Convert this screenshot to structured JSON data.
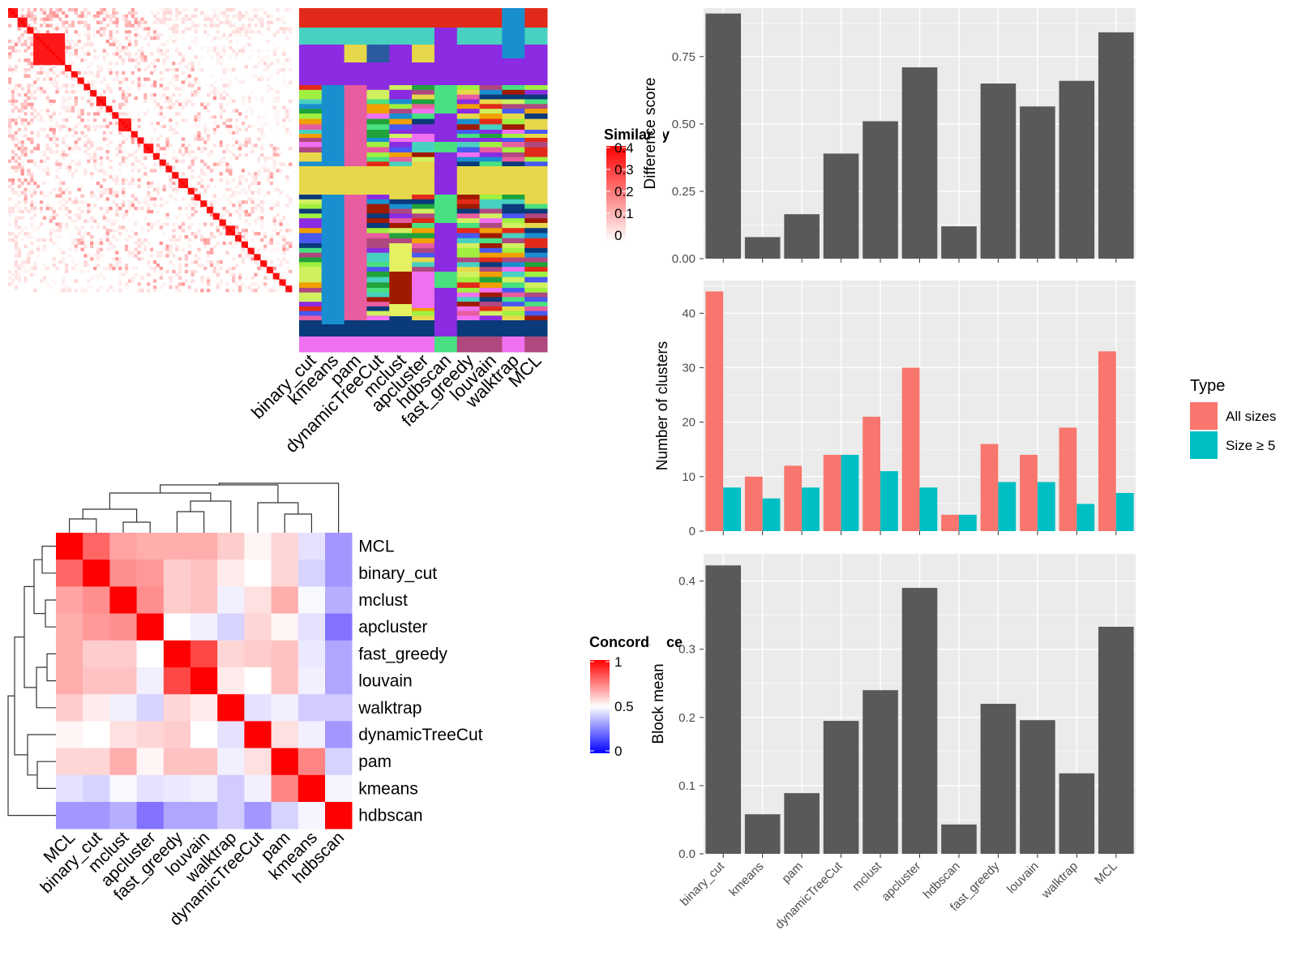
{
  "methods": [
    "binary_cut",
    "kmeans",
    "pam",
    "dynamicTreeCut",
    "mclust",
    "apcluster",
    "hdbscan",
    "fast_greedy",
    "louvain",
    "walktrap",
    "MCL"
  ],
  "colors": {
    "bar": "#595959",
    "panel_bg": "#ebebeb",
    "grid": "#ffffff",
    "all_sizes": "#F8766D",
    "size_ge5": "#00BFC4",
    "heat_high": "#ff0000",
    "heat_mid": "#ffffff",
    "heat_low": "#0000ff",
    "concord_low": "#8060ff"
  },
  "similarity_legend": {
    "title": "Similarity",
    "labels": [
      "0.4",
      "0.3",
      "0.2",
      "0.1",
      "0"
    ]
  },
  "concordance_legend": {
    "title": "Concordance",
    "labels": [
      "1",
      "0.5",
      "0"
    ]
  },
  "type_legend": {
    "title": "Type",
    "items": [
      "All sizes",
      "Size ≥ 5"
    ]
  },
  "concordance": {
    "order": [
      "MCL",
      "binary_cut",
      "mclust",
      "apcluster",
      "fast_greedy",
      "louvain",
      "walktrap",
      "dynamicTreeCut",
      "pam",
      "kmeans",
      "hdbscan"
    ],
    "matrix": [
      [
        1.0,
        0.8,
        0.68,
        0.66,
        0.66,
        0.66,
        0.6,
        0.52,
        0.58,
        0.42,
        0.22
      ],
      [
        0.8,
        1.0,
        0.72,
        0.7,
        0.6,
        0.62,
        0.54,
        0.5,
        0.58,
        0.38,
        0.22
      ],
      [
        0.68,
        0.72,
        1.0,
        0.72,
        0.6,
        0.62,
        0.46,
        0.56,
        0.66,
        0.48,
        0.28
      ],
      [
        0.66,
        0.7,
        0.72,
        1.0,
        0.5,
        0.46,
        0.38,
        0.58,
        0.52,
        0.42,
        0.12
      ],
      [
        0.66,
        0.6,
        0.6,
        0.5,
        1.0,
        0.86,
        0.58,
        0.6,
        0.62,
        0.44,
        0.26
      ],
      [
        0.66,
        0.62,
        0.62,
        0.46,
        0.86,
        1.0,
        0.54,
        0.5,
        0.62,
        0.46,
        0.26
      ],
      [
        0.6,
        0.54,
        0.46,
        0.38,
        0.58,
        0.54,
        1.0,
        0.42,
        0.46,
        0.36,
        0.36
      ],
      [
        0.52,
        0.5,
        0.56,
        0.58,
        0.6,
        0.5,
        0.42,
        1.0,
        0.56,
        0.46,
        0.22
      ],
      [
        0.58,
        0.58,
        0.66,
        0.52,
        0.62,
        0.62,
        0.46,
        0.56,
        1.0,
        0.74,
        0.38
      ],
      [
        0.42,
        0.38,
        0.48,
        0.42,
        0.44,
        0.46,
        0.36,
        0.46,
        0.74,
        1.0,
        0.47
      ],
      [
        0.22,
        0.22,
        0.28,
        0.12,
        0.26,
        0.26,
        0.36,
        0.22,
        0.38,
        0.47,
        1.0
      ]
    ]
  },
  "chart_data": [
    {
      "type": "bar",
      "ylabel": "Difference score",
      "categories": [
        "binary_cut",
        "kmeans",
        "pam",
        "dynamicTreeCut",
        "mclust",
        "apcluster",
        "hdbscan",
        "fast_greedy",
        "louvain",
        "walktrap",
        "MCL"
      ],
      "values": [
        0.91,
        0.08,
        0.165,
        0.39,
        0.51,
        0.71,
        0.12,
        0.65,
        0.565,
        0.66,
        0.84
      ],
      "ylim": [
        0,
        0.93
      ],
      "yticks": [
        0,
        0.25,
        0.5,
        0.75
      ],
      "ytick_labels": [
        "0.00",
        "0.25",
        "0.50",
        "0.75"
      ]
    },
    {
      "type": "bar",
      "ylabel": "Number of clusters",
      "categories": [
        "binary_cut",
        "kmeans",
        "pam",
        "dynamicTreeCut",
        "mclust",
        "apcluster",
        "hdbscan",
        "fast_greedy",
        "louvain",
        "walktrap",
        "MCL"
      ],
      "series": [
        {
          "name": "All sizes",
          "values": [
            44,
            10,
            12,
            14,
            21,
            30,
            3,
            16,
            14,
            19,
            33
          ]
        },
        {
          "name": "Size ≥ 5",
          "values": [
            8,
            6,
            8,
            14,
            11,
            8,
            3,
            9,
            9,
            5,
            7
          ]
        }
      ],
      "ylim": [
        0,
        46
      ],
      "yticks": [
        0,
        10,
        20,
        30,
        40
      ],
      "ytick_labels": [
        "0",
        "10",
        "20",
        "30",
        "40"
      ],
      "legend": "right"
    },
    {
      "type": "bar",
      "ylabel": "Block mean",
      "categories": [
        "binary_cut",
        "kmeans",
        "pam",
        "dynamicTreeCut",
        "mclust",
        "apcluster",
        "hdbscan",
        "fast_greedy",
        "louvain",
        "walktrap",
        "MCL"
      ],
      "values": [
        0.423,
        0.058,
        0.089,
        0.195,
        0.24,
        0.39,
        0.043,
        0.22,
        0.196,
        0.118,
        0.333
      ],
      "ylim": [
        0,
        0.44
      ],
      "yticks": [
        0,
        0.1,
        0.2,
        0.3,
        0.4
      ],
      "ytick_labels": [
        "0.0",
        "0.1",
        "0.2",
        "0.3",
        "0.4"
      ]
    }
  ]
}
